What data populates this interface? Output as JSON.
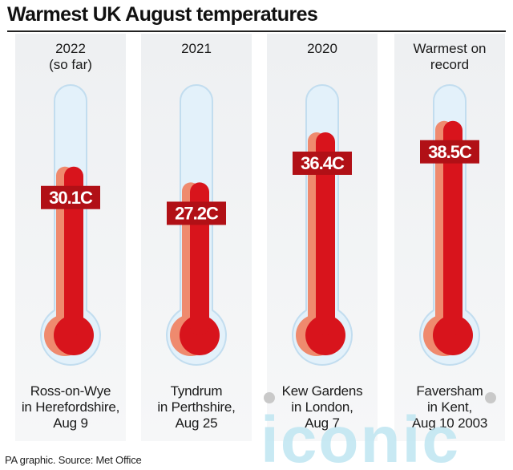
{
  "title": "Warmest UK August temperatures",
  "source": "PA graphic. Source: Met Office",
  "watermark": "iconic",
  "colors": {
    "mercury": "#d8141c",
    "shadow": "#ef8a6e",
    "tube": "#e3f1fa",
    "tube_border": "#c2ddef"
  },
  "chart_data": {
    "type": "bar",
    "title": "Warmest UK August temperatures",
    "unit": "C",
    "categories": [
      "2022\n(so far)",
      "2021",
      "2020",
      "Warmest on\nrecord"
    ],
    "values": [
      30.1,
      27.2,
      36.4,
      38.5
    ],
    "labels": [
      "30.1C",
      "27.2C",
      "36.4C",
      "38.5C"
    ],
    "locations": [
      "Ross-on-Wye\nin Herefordshire,\nAug 9",
      "Tyndrum\nin Perthshire,\nAug 25",
      "Kew Gardens\nin London,\nAug 7",
      "Faversham\nin Kent,\nAug 10 2003"
    ],
    "ylim": [
      0,
      42
    ]
  }
}
